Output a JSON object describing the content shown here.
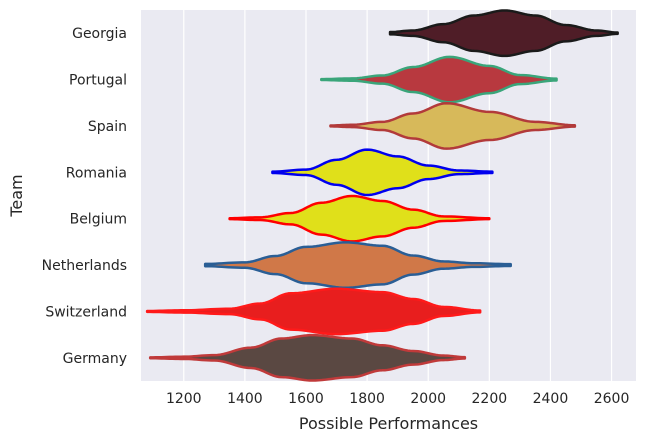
{
  "chart_data": {
    "type": "violin",
    "title": "",
    "xlabel": "Possible Performances",
    "ylabel": "Team",
    "xlim": [
      1060,
      2680
    ],
    "xticks": [
      1200,
      1400,
      1600,
      1800,
      2000,
      2200,
      2400,
      2600
    ],
    "grid": true,
    "categories": [
      "Georgia",
      "Portugal",
      "Spain",
      "Romania",
      "Belgium",
      "Netherlands",
      "Switzerland",
      "Germany"
    ],
    "series": [
      {
        "team": "Georgia",
        "fill": "#4f1d27",
        "edge": "#1a1a1a",
        "profile": [
          [
            1875,
            0.05
          ],
          [
            1950,
            0.12
          ],
          [
            2050,
            0.4
          ],
          [
            2150,
            0.78
          ],
          [
            2250,
            1.0
          ],
          [
            2350,
            0.78
          ],
          [
            2450,
            0.36
          ],
          [
            2550,
            0.12
          ],
          [
            2620,
            0.03
          ]
        ]
      },
      {
        "team": "Portugal",
        "fill": "#b8393f",
        "edge": "#3aa57a",
        "profile": [
          [
            1650,
            0.02
          ],
          [
            1750,
            0.05
          ],
          [
            1850,
            0.18
          ],
          [
            1950,
            0.55
          ],
          [
            2070,
            1.0
          ],
          [
            2200,
            0.6
          ],
          [
            2300,
            0.2
          ],
          [
            2420,
            0.04
          ]
        ]
      },
      {
        "team": "Spain",
        "fill": "#d7b95a",
        "edge": "#b23a3a",
        "profile": [
          [
            1680,
            0.02
          ],
          [
            1750,
            0.05
          ],
          [
            1850,
            0.18
          ],
          [
            1950,
            0.55
          ],
          [
            2060,
            1.0
          ],
          [
            2200,
            0.62
          ],
          [
            2350,
            0.18
          ],
          [
            2480,
            0.03
          ]
        ]
      },
      {
        "team": "Romania",
        "fill": "#e0e01a",
        "edge": "#0000ee",
        "profile": [
          [
            1490,
            0.03
          ],
          [
            1600,
            0.12
          ],
          [
            1700,
            0.55
          ],
          [
            1800,
            1.0
          ],
          [
            1900,
            0.7
          ],
          [
            2000,
            0.3
          ],
          [
            2100,
            0.08
          ],
          [
            2210,
            0.03
          ]
        ]
      },
      {
        "team": "Belgium",
        "fill": "#e0e01a",
        "edge": "#ff0000",
        "profile": [
          [
            1350,
            0.02
          ],
          [
            1450,
            0.06
          ],
          [
            1550,
            0.25
          ],
          [
            1650,
            0.7
          ],
          [
            1750,
            1.0
          ],
          [
            1850,
            0.78
          ],
          [
            1950,
            0.4
          ],
          [
            2050,
            0.1
          ],
          [
            2200,
            0.02
          ]
        ]
      },
      {
        "team": "Netherlands",
        "fill": "#d07848",
        "edge": "#2a5e95",
        "profile": [
          [
            1270,
            0.05
          ],
          [
            1400,
            0.12
          ],
          [
            1500,
            0.4
          ],
          [
            1600,
            0.8
          ],
          [
            1730,
            1.0
          ],
          [
            1850,
            0.85
          ],
          [
            1950,
            0.42
          ],
          [
            2050,
            0.16
          ],
          [
            2150,
            0.08
          ],
          [
            2270,
            0.04
          ]
        ]
      },
      {
        "team": "Switzerland",
        "fill": "#e81e1e",
        "edge": "#ff1a1a",
        "profile": [
          [
            1080,
            0.02
          ],
          [
            1200,
            0.05
          ],
          [
            1350,
            0.12
          ],
          [
            1450,
            0.35
          ],
          [
            1550,
            0.8
          ],
          [
            1700,
            1.0
          ],
          [
            1850,
            0.85
          ],
          [
            1950,
            0.55
          ],
          [
            2050,
            0.2
          ],
          [
            2170,
            0.04
          ]
        ]
      },
      {
        "team": "Germany",
        "fill": "#5a4842",
        "edge": "#c03a3a",
        "profile": [
          [
            1090,
            0.02
          ],
          [
            1200,
            0.05
          ],
          [
            1300,
            0.12
          ],
          [
            1420,
            0.45
          ],
          [
            1520,
            0.85
          ],
          [
            1620,
            1.0
          ],
          [
            1750,
            0.85
          ],
          [
            1850,
            0.55
          ],
          [
            1950,
            0.3
          ],
          [
            2050,
            0.1
          ],
          [
            2120,
            0.03
          ]
        ]
      }
    ]
  }
}
